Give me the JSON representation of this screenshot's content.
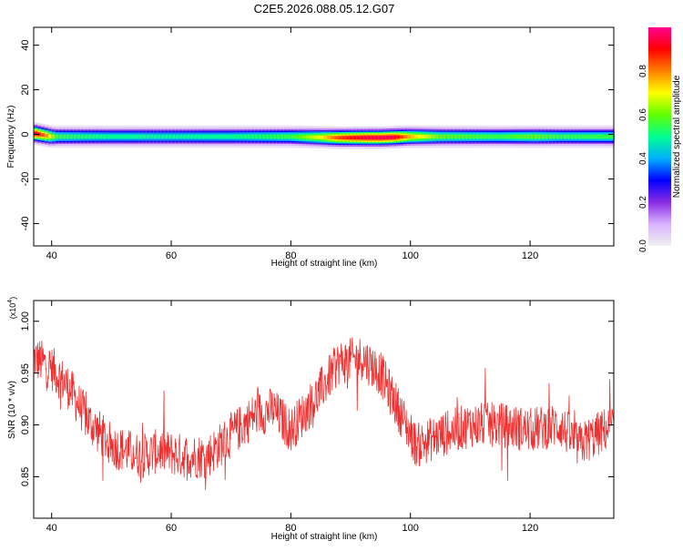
{
  "title": "C2E5.2026.088.05.12.G07",
  "colors": {
    "snr_line": "#f03030",
    "axis": "#000000",
    "background": "#ffffff",
    "colormap": [
      "#f0f0f0",
      "#d9b3ff",
      "#8a2be2",
      "#0000ff",
      "#00b0ff",
      "#00ff90",
      "#60ff00",
      "#ffff00",
      "#ff8000",
      "#ff0000",
      "#ff0090"
    ]
  },
  "chart_data": [
    {
      "type": "heatmap",
      "title": "",
      "xlabel": "Height of straight line (km)",
      "ylabel": "Frequency (Hz)",
      "xlim": [
        37,
        134
      ],
      "ylim": [
        -50,
        48
      ],
      "xticks": [
        40,
        60,
        80,
        100,
        120
      ],
      "yticks": [
        -40,
        -20,
        0,
        20,
        40
      ],
      "colorbar": {
        "label": "Normalized spectral amplitude",
        "range": [
          0,
          1
        ],
        "ticks": [
          0.0,
          0.2,
          0.4,
          0.6,
          0.8
        ]
      },
      "band_description": "Narrow spectral band centered near 0 Hz across all heights; peak amplitude (red) near 38 km and between ~86 and ~100 km.",
      "band_center_hz": [
        {
          "x": 37,
          "y": 0.5
        },
        {
          "x": 40,
          "y": -1.0
        },
        {
          "x": 45,
          "y": -1.0
        },
        {
          "x": 60,
          "y": -1.0
        },
        {
          "x": 80,
          "y": -1.0
        },
        {
          "x": 88,
          "y": -1.5
        },
        {
          "x": 95,
          "y": -1.5
        },
        {
          "x": 100,
          "y": -1.0
        },
        {
          "x": 120,
          "y": -1.0
        },
        {
          "x": 134,
          "y": -1.0
        }
      ],
      "peak_amplitude": [
        {
          "x": 37,
          "v": 0.95
        },
        {
          "x": 39,
          "v": 0.8
        },
        {
          "x": 41,
          "v": 0.55
        },
        {
          "x": 50,
          "v": 0.5
        },
        {
          "x": 60,
          "v": 0.5
        },
        {
          "x": 70,
          "v": 0.5
        },
        {
          "x": 80,
          "v": 0.55
        },
        {
          "x": 85,
          "v": 0.7
        },
        {
          "x": 88,
          "v": 0.85
        },
        {
          "x": 93,
          "v": 0.95
        },
        {
          "x": 97,
          "v": 0.95
        },
        {
          "x": 100,
          "v": 0.75
        },
        {
          "x": 105,
          "v": 0.6
        },
        {
          "x": 115,
          "v": 0.55
        },
        {
          "x": 121,
          "v": 0.6
        },
        {
          "x": 125,
          "v": 0.55
        },
        {
          "x": 134,
          "v": 0.55
        }
      ]
    },
    {
      "type": "line",
      "title": "",
      "xlabel": "Height of straight line (km)",
      "ylabel": "SNR (10 * v/v)",
      "y_multiplier": "(x10",
      "y_multiplier_exp": "4",
      "y_multiplier_close": ")",
      "xlim": [
        37,
        134
      ],
      "ylim": [
        0.81,
        1.02
      ],
      "xticks": [
        40,
        60,
        80,
        100,
        120
      ],
      "yticks": [
        0.85,
        0.9,
        0.95,
        1.0
      ],
      "ytick_labels": [
        "0.85",
        "0.90",
        "0.95",
        "1.00"
      ],
      "series": [
        {
          "name": "",
          "color": "#f03030",
          "trend": [
            {
              "x": 37,
              "y": 0.965
            },
            {
              "x": 40,
              "y": 0.955
            },
            {
              "x": 43,
              "y": 0.935
            },
            {
              "x": 46,
              "y": 0.905
            },
            {
              "x": 50,
              "y": 0.88
            },
            {
              "x": 55,
              "y": 0.87
            },
            {
              "x": 58,
              "y": 0.875
            },
            {
              "x": 62,
              "y": 0.87
            },
            {
              "x": 66,
              "y": 0.87
            },
            {
              "x": 70,
              "y": 0.89
            },
            {
              "x": 74,
              "y": 0.91
            },
            {
              "x": 77,
              "y": 0.915
            },
            {
              "x": 80,
              "y": 0.895
            },
            {
              "x": 84,
              "y": 0.925
            },
            {
              "x": 88,
              "y": 0.96
            },
            {
              "x": 92,
              "y": 0.965
            },
            {
              "x": 95,
              "y": 0.95
            },
            {
              "x": 98,
              "y": 0.915
            },
            {
              "x": 101,
              "y": 0.88
            },
            {
              "x": 105,
              "y": 0.89
            },
            {
              "x": 110,
              "y": 0.9
            },
            {
              "x": 115,
              "y": 0.9
            },
            {
              "x": 120,
              "y": 0.895
            },
            {
              "x": 125,
              "y": 0.9
            },
            {
              "x": 128,
              "y": 0.88
            },
            {
              "x": 131,
              "y": 0.89
            },
            {
              "x": 134,
              "y": 0.9
            }
          ],
          "noise_amplitude": 0.022
        }
      ]
    }
  ]
}
